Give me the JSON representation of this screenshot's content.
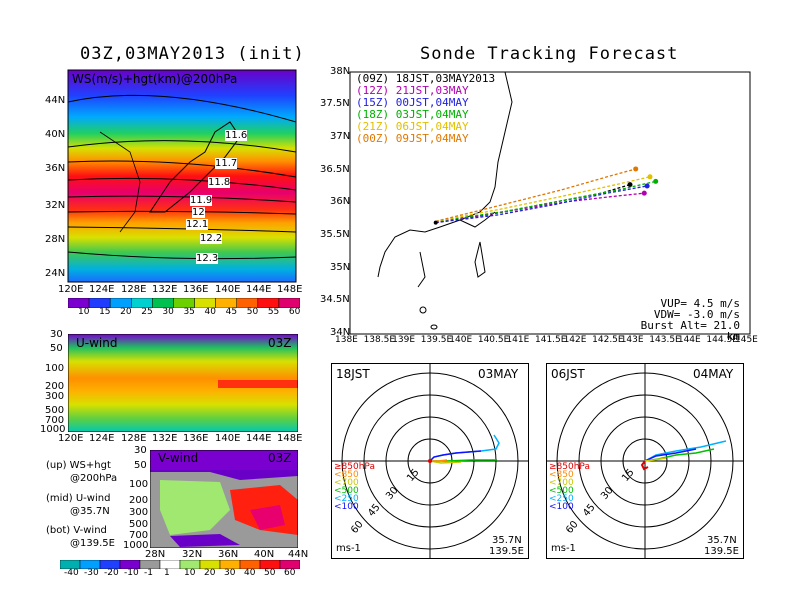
{
  "titles": {
    "left": "03Z,03MAY2013 (init)",
    "right": "Sonde Tracking Forecast"
  },
  "ws_map": {
    "label": "WS(m/s)+hgt(km)@200hPa",
    "lat_labels": [
      "44N",
      "40N",
      "36N",
      "32N",
      "28N",
      "24N"
    ],
    "lon_labels": [
      "120E",
      "124E",
      "128E",
      "132E",
      "136E",
      "140E",
      "144E",
      "148E"
    ],
    "contours": [
      "11.6",
      "11.7",
      "11.8",
      "11.9",
      "12",
      "12.1",
      "12.2",
      "12.3"
    ],
    "colorbar": [
      "10",
      "15",
      "20",
      "25",
      "30",
      "35",
      "40",
      "45",
      "50",
      "55",
      "60"
    ],
    "colors": [
      "#7a00d0",
      "#1f3cff",
      "#00a0ff",
      "#00d0d0",
      "#00c050",
      "#6cd000",
      "#d8e000",
      "#ffb000",
      "#ff6000",
      "#ff1010",
      "#e0006e"
    ]
  },
  "u_panel": {
    "label": "U-wind",
    "time": "03Z",
    "y_labels": [
      "30",
      "50",
      "100",
      "200",
      "300",
      "500",
      "700",
      "1000"
    ],
    "x_labels": [
      "120E",
      "124E",
      "128E",
      "132E",
      "136E",
      "140E",
      "144E",
      "148E"
    ]
  },
  "v_panel": {
    "label": "V-wind",
    "time": "03Z",
    "y_labels": [
      "30",
      "50",
      "100",
      "200",
      "300",
      "500",
      "700",
      "1000"
    ],
    "x_labels": [
      "28N",
      "32N",
      "36N",
      "40N",
      "44N"
    ],
    "colorbar": [
      "-40",
      "-30",
      "-20",
      "-10",
      "-1",
      "1",
      "10",
      "20",
      "30",
      "40",
      "50",
      "60"
    ]
  },
  "legend_notes": {
    "up1": "(up) WS+hgt",
    "up2": "@200hPa",
    "mid1": "(mid) U-wind",
    "mid2": "@35.7N",
    "bot1": "(bot) V-wind",
    "bot2": "@139.5E"
  },
  "track": {
    "y_labels": [
      "38N",
      "37.5N",
      "37N",
      "36.5N",
      "36N",
      "35.5N",
      "35N",
      "34.5N",
      "34N"
    ],
    "x_labels": [
      "138E",
      "138.5E",
      "139E",
      "139.5E",
      "140E",
      "140.5E",
      "141E",
      "141.5E",
      "142E",
      "142.5E",
      "143E",
      "143.5E",
      "144E",
      "144.5E",
      "145E"
    ],
    "legend": [
      {
        "text": "(09Z) 18JST,03MAY2013",
        "color": "#000000"
      },
      {
        "text": "(12Z) 21JST,03MAY",
        "color": "#b000b0"
      },
      {
        "text": "(15Z) 00JST,04MAY",
        "color": "#2020e0"
      },
      {
        "text": "(18Z) 03JST,04MAY",
        "color": "#00b000"
      },
      {
        "text": "(21Z) 06JST,04MAY",
        "color": "#e0c000"
      },
      {
        "text": "(00Z) 09JST,04MAY",
        "color": "#e07800"
      }
    ],
    "params": {
      "vup": "VUP= 4.5 m/s",
      "vdw": "VDW= -3.0 m/s",
      "burst": "Burst Alt= 21.0 km"
    }
  },
  "chart_data": {
    "type": "line",
    "title": "Sonde Tracking Forecast",
    "xlim": [
      138,
      145
    ],
    "ylim": [
      34,
      38
    ],
    "launch": [
      139.5,
      35.7
    ],
    "series": [
      {
        "name": "(09Z) 18JST,03MAY2013",
        "color": "#000000",
        "points": [
          [
            139.5,
            35.7
          ],
          [
            140.6,
            35.85
          ],
          [
            141.5,
            36.0
          ],
          [
            142.4,
            36.15
          ],
          [
            142.9,
            36.28
          ]
        ]
      },
      {
        "name": "(12Z) 21JST,03MAY",
        "color": "#b000b0",
        "points": [
          [
            139.5,
            35.7
          ],
          [
            140.8,
            35.88
          ],
          [
            141.8,
            36.02
          ],
          [
            142.6,
            36.1
          ],
          [
            143.15,
            36.15
          ]
        ]
      },
      {
        "name": "(15Z) 00JST,04MAY",
        "color": "#2020e0",
        "points": [
          [
            139.5,
            35.7
          ],
          [
            140.6,
            35.82
          ],
          [
            141.6,
            35.98
          ],
          [
            142.5,
            36.15
          ],
          [
            143.2,
            36.26
          ]
        ]
      },
      {
        "name": "(18Z) 03JST,04MAY",
        "color": "#00b000",
        "points": [
          [
            139.5,
            35.72
          ],
          [
            140.7,
            35.87
          ],
          [
            141.8,
            36.05
          ],
          [
            142.7,
            36.2
          ],
          [
            143.35,
            36.33
          ]
        ]
      },
      {
        "name": "(21Z) 06JST,04MAY",
        "color": "#e0c000",
        "points": [
          [
            139.5,
            35.72
          ],
          [
            140.6,
            35.9
          ],
          [
            141.7,
            36.1
          ],
          [
            142.6,
            36.27
          ],
          [
            143.25,
            36.4
          ]
        ]
      },
      {
        "name": "(00Z) 09JST,04MAY",
        "color": "#e07800",
        "points": [
          [
            139.5,
            35.72
          ],
          [
            140.7,
            35.98
          ],
          [
            141.7,
            36.2
          ],
          [
            142.5,
            36.4
          ],
          [
            143.0,
            36.52
          ]
        ]
      }
    ]
  },
  "polar_left": {
    "time": "18JST",
    "date": "03MAY",
    "rings": [
      "15",
      "30",
      "45",
      "60"
    ],
    "levels": [
      {
        "text": "≥850hPa",
        "color": "#e00000"
      },
      {
        "text": "<850",
        "color": "#ff8800"
      },
      {
        "text": "<700",
        "color": "#c8c800"
      },
      {
        "text": "<500",
        "color": "#00c000"
      },
      {
        "text": "<250",
        "color": "#00b0ff"
      },
      {
        "text": "<100",
        "color": "#1010ff"
      }
    ],
    "units": "ms-1",
    "lat": "35.7N",
    "lon": "139.5E"
  },
  "polar_right": {
    "time": "06JST",
    "date": "04MAY",
    "rings": [
      "15",
      "30",
      "45",
      "60"
    ],
    "levels": [
      {
        "text": "≥850hPa",
        "color": "#e00000"
      },
      {
        "text": "<850",
        "color": "#ff8800"
      },
      {
        "text": "<700",
        "color": "#c8c800"
      },
      {
        "text": "<500",
        "color": "#00c000"
      },
      {
        "text": "<250",
        "color": "#00b0ff"
      },
      {
        "text": "<100",
        "color": "#1010ff"
      }
    ],
    "units": "ms-1",
    "lat": "35.7N",
    "lon": "139.5E"
  }
}
